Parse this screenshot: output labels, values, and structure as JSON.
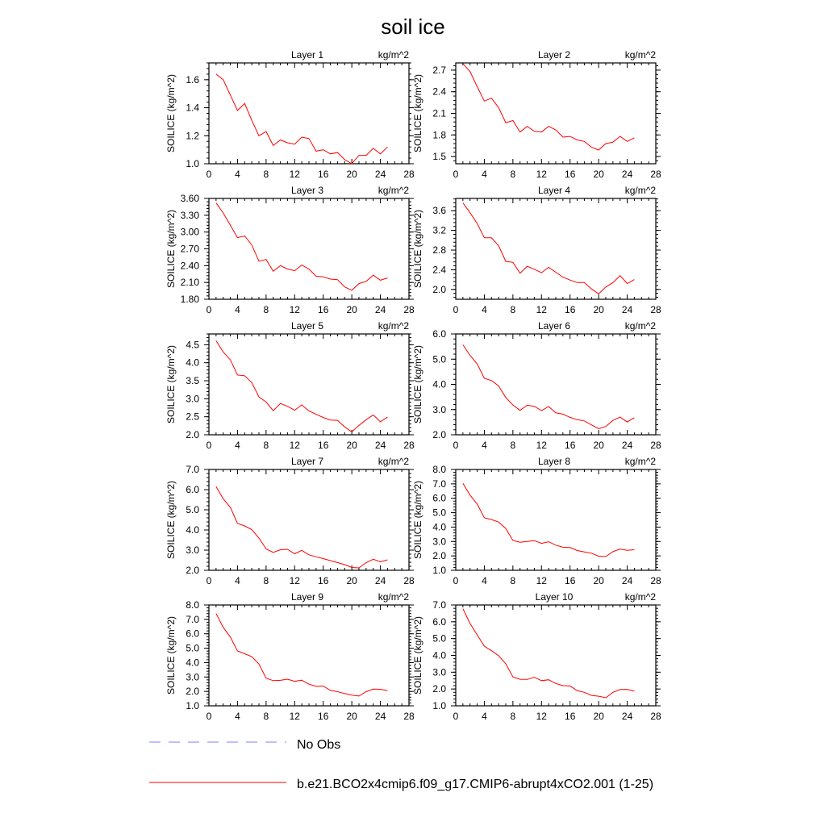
{
  "figure": {
    "title": "soil ice",
    "legend": [
      {
        "label": "No Obs",
        "color": "#9999ff",
        "style": "dashed"
      },
      {
        "label": "b.e21.BCO2x4cmip6.f09_g17.CMIP6-abrupt4xCO2.001 (1-25)",
        "color": "#ff0000",
        "style": "solid"
      }
    ]
  },
  "chart_data": [
    {
      "type": "line",
      "title": "Layer 1",
      "units": "kg/m^2",
      "ylabel": "SOILICE  (kg/m^2)",
      "xlim": [
        0,
        28
      ],
      "xticks": [
        0,
        4,
        8,
        12,
        16,
        20,
        24,
        28
      ],
      "ylim": [
        1.0,
        1.72
      ],
      "yticks": [
        1.0,
        1.2,
        1.4,
        1.6
      ],
      "ytick_labels": [
        "1.0",
        "1.2",
        "1.4",
        "1.6"
      ],
      "series": [
        {
          "name": "b.e21.BCO2x4cmip6.f09_g17.CMIP6-abrupt4xCO2.001 (1-25)",
          "color": "#ff0000",
          "x": [
            1,
            2,
            3,
            4,
            5,
            6,
            7,
            8,
            9,
            10,
            11,
            12,
            13,
            14,
            15,
            16,
            17,
            18,
            19,
            20,
            21,
            22,
            23,
            24,
            25
          ],
          "values": [
            1.64,
            1.6,
            1.49,
            1.38,
            1.43,
            1.31,
            1.2,
            1.23,
            1.13,
            1.17,
            1.15,
            1.14,
            1.19,
            1.18,
            1.09,
            1.1,
            1.07,
            1.08,
            1.03,
            1.0,
            1.06,
            1.06,
            1.11,
            1.07,
            1.12
          ]
        }
      ]
    },
    {
      "type": "line",
      "title": "Layer 2",
      "units": "kg/m^2",
      "ylabel": "SOILICE  (kg/m^2)",
      "xlim": [
        0,
        28
      ],
      "xticks": [
        0,
        4,
        8,
        12,
        16,
        20,
        24,
        28
      ],
      "ylim": [
        1.4,
        2.8
      ],
      "yticks": [
        1.5,
        1.8,
        2.1,
        2.4,
        2.7
      ],
      "ytick_labels": [
        "1.5",
        "1.8",
        "2.1",
        "2.4",
        "2.7"
      ],
      "series": [
        {
          "name": "b.e21.BCO2x4cmip6.f09_g17.CMIP6-abrupt4xCO2.001 (1-25)",
          "color": "#ff0000",
          "x": [
            1,
            2,
            3,
            4,
            5,
            6,
            7,
            8,
            9,
            10,
            11,
            12,
            13,
            14,
            15,
            16,
            17,
            18,
            19,
            20,
            21,
            22,
            23,
            24,
            25
          ],
          "values": [
            2.79,
            2.68,
            2.47,
            2.27,
            2.31,
            2.18,
            1.97,
            2.0,
            1.84,
            1.92,
            1.85,
            1.84,
            1.92,
            1.87,
            1.77,
            1.78,
            1.73,
            1.71,
            1.63,
            1.59,
            1.68,
            1.7,
            1.78,
            1.71,
            1.76
          ]
        }
      ]
    },
    {
      "type": "line",
      "title": "Layer 3",
      "units": "kg/m^2",
      "ylabel": "SOILICE  (kg/m^2)",
      "xlim": [
        0,
        28
      ],
      "xticks": [
        0,
        4,
        8,
        12,
        16,
        20,
        24,
        28
      ],
      "ylim": [
        1.8,
        3.6
      ],
      "yticks": [
        1.8,
        2.1,
        2.4,
        2.7,
        3.0,
        3.3,
        3.6
      ],
      "ytick_labels": [
        "1.80",
        "2.10",
        "2.40",
        "2.70",
        "3.00",
        "3.30",
        "3.60"
      ],
      "series": [
        {
          "name": "b.e21.BCO2x4cmip6.f09_g17.CMIP6-abrupt4xCO2.001 (1-25)",
          "color": "#ff0000",
          "x": [
            1,
            2,
            3,
            4,
            5,
            6,
            7,
            8,
            9,
            10,
            11,
            12,
            13,
            14,
            15,
            16,
            17,
            18,
            19,
            20,
            21,
            22,
            23,
            24,
            25
          ],
          "values": [
            3.52,
            3.34,
            3.12,
            2.9,
            2.93,
            2.77,
            2.48,
            2.51,
            2.3,
            2.4,
            2.34,
            2.31,
            2.41,
            2.34,
            2.21,
            2.2,
            2.16,
            2.15,
            2.02,
            1.96,
            2.08,
            2.12,
            2.23,
            2.14,
            2.18
          ]
        }
      ]
    },
    {
      "type": "line",
      "title": "Layer 4",
      "units": "kg/m^2",
      "ylabel": "SOILICE  (kg/m^2)",
      "xlim": [
        0,
        28
      ],
      "xticks": [
        0,
        4,
        8,
        12,
        16,
        20,
        24,
        28
      ],
      "ylim": [
        1.8,
        3.85
      ],
      "yticks": [
        2.0,
        2.4,
        2.8,
        3.2,
        3.6
      ],
      "ytick_labels": [
        "2.0",
        "2.4",
        "2.8",
        "3.2",
        "3.6"
      ],
      "series": [
        {
          "name": "b.e21.BCO2x4cmip6.f09_g17.CMIP6-abrupt4xCO2.001 (1-25)",
          "color": "#ff0000",
          "x": [
            1,
            2,
            3,
            4,
            5,
            6,
            7,
            8,
            9,
            10,
            11,
            12,
            13,
            14,
            15,
            16,
            17,
            18,
            19,
            20,
            21,
            22,
            23,
            24,
            25
          ],
          "values": [
            3.76,
            3.56,
            3.34,
            3.05,
            3.05,
            2.89,
            2.57,
            2.55,
            2.33,
            2.47,
            2.41,
            2.34,
            2.45,
            2.35,
            2.25,
            2.19,
            2.14,
            2.14,
            2.01,
            1.91,
            2.05,
            2.14,
            2.28,
            2.12,
            2.2
          ]
        }
      ]
    },
    {
      "type": "line",
      "title": "Layer 5",
      "units": "kg/m^2",
      "ylabel": "SOILICE  (kg/m^2)",
      "xlim": [
        0,
        28
      ],
      "xticks": [
        0,
        4,
        8,
        12,
        16,
        20,
        24,
        28
      ],
      "ylim": [
        2.0,
        4.8
      ],
      "yticks": [
        2.0,
        2.5,
        3.0,
        3.5,
        4.0,
        4.5
      ],
      "ytick_labels": [
        "2.0",
        "2.5",
        "3.0",
        "3.5",
        "4.0",
        "4.5"
      ],
      "series": [
        {
          "name": "b.e21.BCO2x4cmip6.f09_g17.CMIP6-abrupt4xCO2.001 (1-25)",
          "color": "#ff0000",
          "x": [
            1,
            2,
            3,
            4,
            5,
            6,
            7,
            8,
            9,
            10,
            11,
            12,
            13,
            14,
            15,
            16,
            17,
            18,
            19,
            20,
            21,
            22,
            23,
            24,
            25
          ],
          "values": [
            4.61,
            4.3,
            4.08,
            3.66,
            3.64,
            3.45,
            3.05,
            2.91,
            2.67,
            2.87,
            2.79,
            2.68,
            2.83,
            2.66,
            2.57,
            2.48,
            2.41,
            2.4,
            2.22,
            2.08,
            2.26,
            2.42,
            2.55,
            2.36,
            2.49
          ]
        }
      ]
    },
    {
      "type": "line",
      "title": "Layer 6",
      "units": "kg/m^2",
      "ylabel": "SOILICE  (kg/m^2)",
      "xlim": [
        0,
        28
      ],
      "xticks": [
        0,
        4,
        8,
        12,
        16,
        20,
        24,
        28
      ],
      "ylim": [
        2.0,
        6.0
      ],
      "yticks": [
        2.0,
        3.0,
        4.0,
        5.0,
        6.0
      ],
      "ytick_labels": [
        "2.0",
        "3.0",
        "4.0",
        "5.0",
        "6.0"
      ],
      "series": [
        {
          "name": "b.e21.BCO2x4cmip6.f09_g17.CMIP6-abrupt4xCO2.001 (1-25)",
          "color": "#ff0000",
          "x": [
            1,
            2,
            3,
            4,
            5,
            6,
            7,
            8,
            9,
            10,
            11,
            12,
            13,
            14,
            15,
            16,
            17,
            18,
            19,
            20,
            21,
            22,
            23,
            24,
            25
          ],
          "values": [
            5.57,
            5.15,
            4.81,
            4.24,
            4.15,
            3.94,
            3.48,
            3.18,
            2.97,
            3.17,
            3.13,
            2.96,
            3.12,
            2.87,
            2.82,
            2.69,
            2.6,
            2.55,
            2.39,
            2.24,
            2.33,
            2.57,
            2.7,
            2.51,
            2.68
          ]
        }
      ]
    },
    {
      "type": "line",
      "title": "Layer 7",
      "units": "kg/m^2",
      "ylabel": "SOILICE  (kg/m^2)",
      "xlim": [
        0,
        28
      ],
      "xticks": [
        0,
        4,
        8,
        12,
        16,
        20,
        24,
        28
      ],
      "ylim": [
        2.0,
        7.0
      ],
      "yticks": [
        2.0,
        3.0,
        4.0,
        5.0,
        6.0,
        7.0
      ],
      "ytick_labels": [
        "2.0",
        "3.0",
        "4.0",
        "5.0",
        "6.0",
        "7.0"
      ],
      "series": [
        {
          "name": "b.e21.BCO2x4cmip6.f09_g17.CMIP6-abrupt4xCO2.001 (1-25)",
          "color": "#ff0000",
          "x": [
            1,
            2,
            3,
            4,
            5,
            6,
            7,
            8,
            9,
            10,
            11,
            12,
            13,
            14,
            15,
            16,
            17,
            18,
            19,
            20,
            21,
            22,
            23,
            24,
            25
          ],
          "values": [
            6.15,
            5.55,
            5.12,
            4.33,
            4.2,
            4.02,
            3.6,
            3.06,
            2.89,
            3.02,
            3.04,
            2.82,
            2.99,
            2.77,
            2.67,
            2.58,
            2.48,
            2.38,
            2.28,
            2.14,
            2.12,
            2.38,
            2.55,
            2.42,
            2.52
          ]
        }
      ]
    },
    {
      "type": "line",
      "title": "Layer 8",
      "units": "kg/m^2",
      "ylabel": "SOILICE  (kg/m^2)",
      "xlim": [
        0,
        28
      ],
      "xticks": [
        0,
        4,
        8,
        12,
        16,
        20,
        24,
        28
      ],
      "ylim": [
        1.0,
        8.0
      ],
      "yticks": [
        1.0,
        2.0,
        3.0,
        4.0,
        5.0,
        6.0,
        7.0,
        8.0
      ],
      "ytick_labels": [
        "1.0",
        "2.0",
        "3.0",
        "4.0",
        "5.0",
        "6.0",
        "7.0",
        "8.0"
      ],
      "series": [
        {
          "name": "b.e21.BCO2x4cmip6.f09_g17.CMIP6-abrupt4xCO2.001 (1-25)",
          "color": "#ff0000",
          "x": [
            1,
            2,
            3,
            4,
            5,
            6,
            7,
            8,
            9,
            10,
            11,
            12,
            13,
            14,
            15,
            16,
            17,
            18,
            19,
            20,
            21,
            22,
            23,
            24,
            25
          ],
          "values": [
            7.03,
            6.22,
            5.6,
            4.65,
            4.52,
            4.35,
            3.9,
            3.07,
            2.95,
            3.0,
            3.06,
            2.87,
            2.98,
            2.75,
            2.6,
            2.58,
            2.37,
            2.27,
            2.19,
            1.98,
            1.96,
            2.3,
            2.48,
            2.39,
            2.43
          ]
        }
      ]
    },
    {
      "type": "line",
      "title": "Layer 9",
      "units": "kg/m^2",
      "ylabel": "SOILICE  (kg/m^2)",
      "xlim": [
        0,
        28
      ],
      "xticks": [
        0,
        4,
        8,
        12,
        16,
        20,
        24,
        28
      ],
      "ylim": [
        1.0,
        8.0
      ],
      "yticks": [
        1.0,
        2.0,
        3.0,
        4.0,
        5.0,
        6.0,
        7.0,
        8.0
      ],
      "ytick_labels": [
        "1.0",
        "2.0",
        "3.0",
        "4.0",
        "5.0",
        "6.0",
        "7.0",
        "8.0"
      ],
      "series": [
        {
          "name": "b.e21.BCO2x4cmip6.f09_g17.CMIP6-abrupt4xCO2.001 (1-25)",
          "color": "#ff0000",
          "x": [
            1,
            2,
            3,
            4,
            5,
            6,
            7,
            8,
            9,
            10,
            11,
            12,
            13,
            14,
            15,
            16,
            17,
            18,
            19,
            20,
            21,
            22,
            23,
            24,
            25
          ],
          "values": [
            7.4,
            6.45,
            5.77,
            4.81,
            4.62,
            4.41,
            3.9,
            2.92,
            2.75,
            2.77,
            2.85,
            2.7,
            2.78,
            2.5,
            2.35,
            2.37,
            2.07,
            1.98,
            1.85,
            1.74,
            1.68,
            1.98,
            2.16,
            2.15,
            2.05
          ]
        }
      ]
    },
    {
      "type": "line",
      "title": "Layer 10",
      "units": "kg/m^2",
      "ylabel": "SOILICE  (kg/m^2)",
      "xlim": [
        0,
        28
      ],
      "xticks": [
        0,
        4,
        8,
        12,
        16,
        20,
        24,
        28
      ],
      "ylim": [
        1.0,
        7.0
      ],
      "yticks": [
        1.0,
        2.0,
        3.0,
        4.0,
        5.0,
        6.0,
        7.0
      ],
      "ytick_labels": [
        "1.0",
        "2.0",
        "3.0",
        "4.0",
        "5.0",
        "6.0",
        "7.0"
      ],
      "series": [
        {
          "name": "b.e21.BCO2x4cmip6.f09_g17.CMIP6-abrupt4xCO2.001 (1-25)",
          "color": "#ff0000",
          "x": [
            1,
            2,
            3,
            4,
            5,
            6,
            7,
            8,
            9,
            10,
            11,
            12,
            13,
            14,
            15,
            16,
            17,
            18,
            19,
            20,
            21,
            22,
            23,
            24,
            25
          ],
          "values": [
            6.78,
            5.9,
            5.22,
            4.55,
            4.28,
            3.98,
            3.5,
            2.72,
            2.58,
            2.57,
            2.7,
            2.5,
            2.55,
            2.33,
            2.2,
            2.18,
            1.9,
            1.8,
            1.62,
            1.57,
            1.48,
            1.8,
            1.97,
            1.98,
            1.87
          ]
        }
      ]
    }
  ]
}
